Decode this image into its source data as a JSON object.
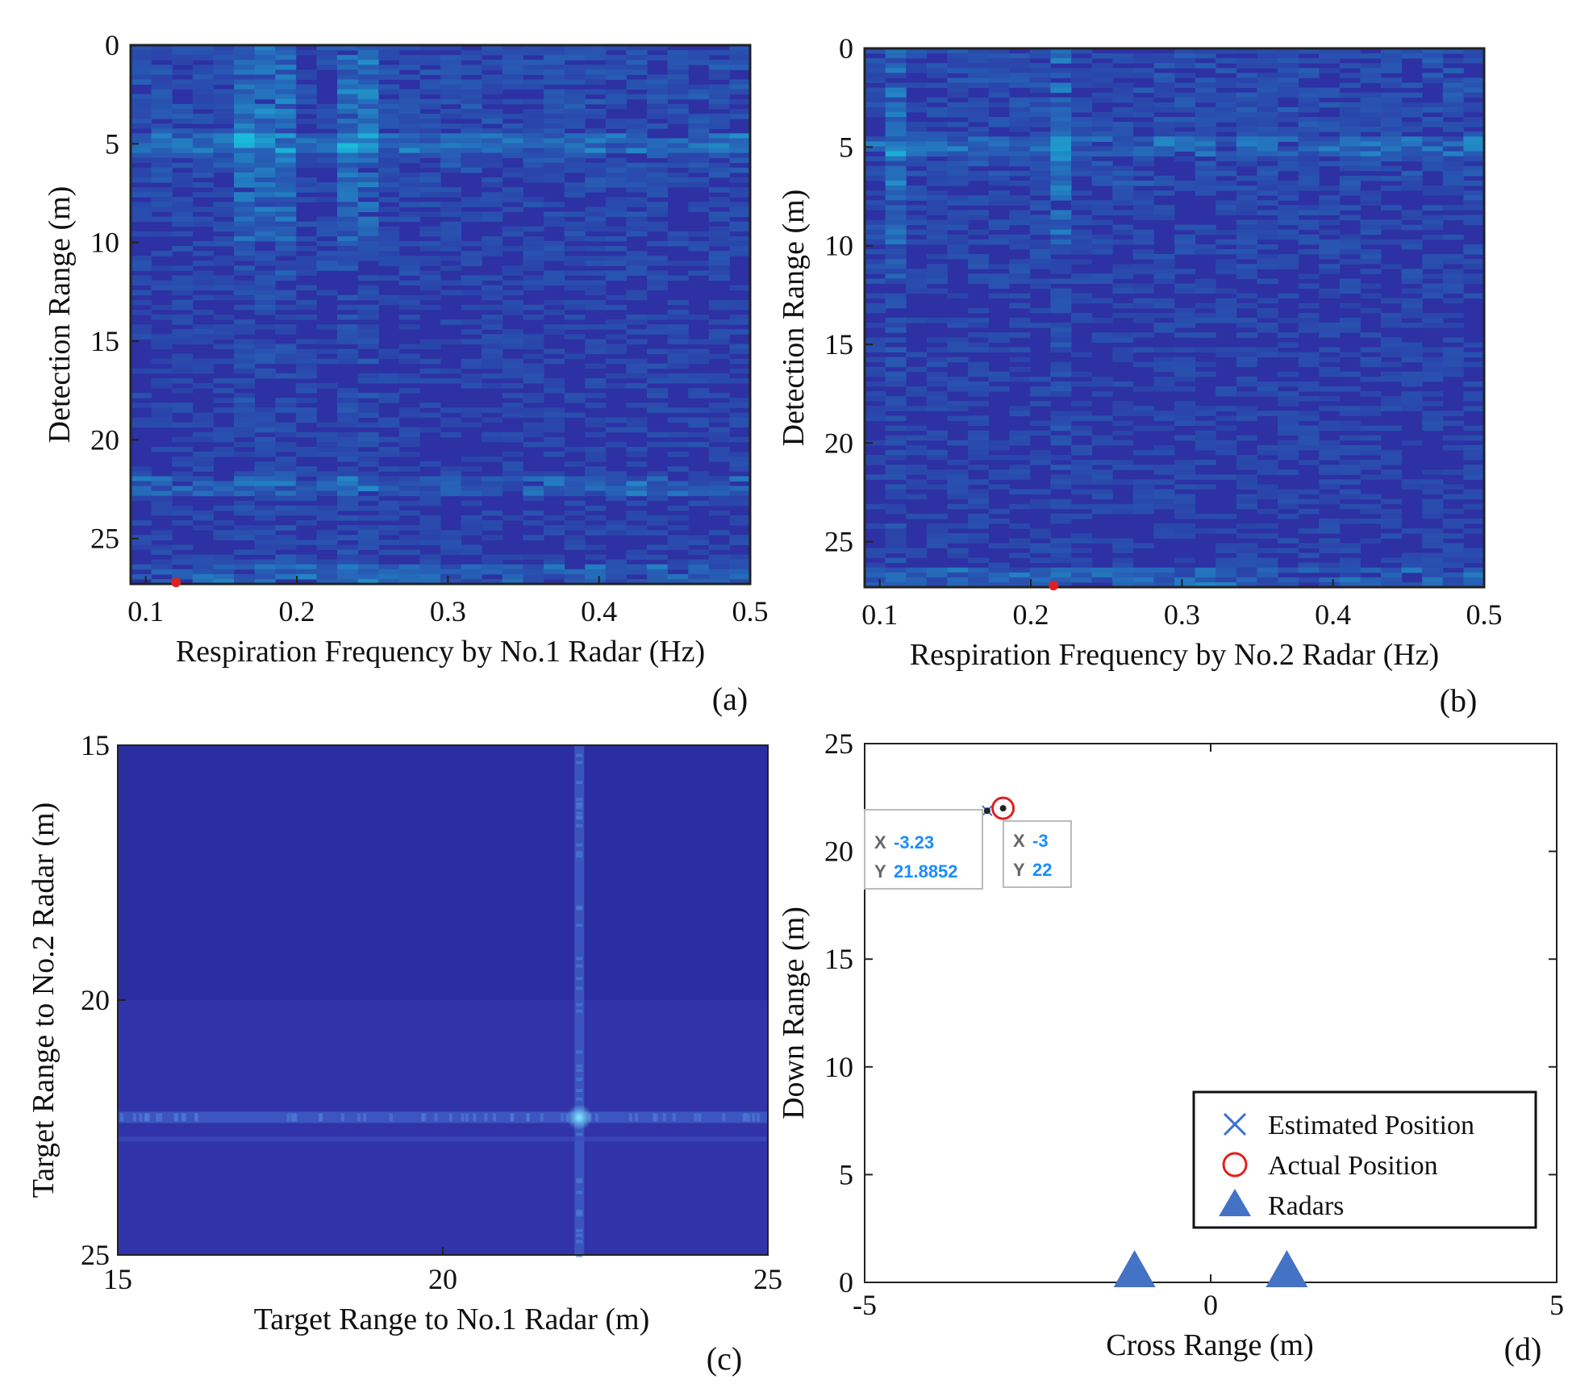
{
  "chart_data": [
    {
      "type": "heatmap",
      "panel": "(a)",
      "xlabel": "Respiration Frequency by No.1 Radar (Hz)",
      "ylabel": "Detection Range (m)",
      "xlim": [
        0.09,
        0.5
      ],
      "ylim": [
        0,
        27.3
      ],
      "xticks": [
        "0.1",
        "0.2",
        "0.3",
        "0.4",
        "0.5"
      ],
      "xtick_values": [
        0.1,
        0.2,
        0.3,
        0.4,
        0.5
      ],
      "yticks": [
        "0",
        "5",
        "10",
        "15",
        "20",
        "25"
      ],
      "ytick_values": [
        0,
        5,
        10,
        15,
        20,
        25
      ],
      "bright_columns_hz": [
        0.16,
        0.185,
        0.24
      ],
      "bright_rows_m": [
        5,
        22.3,
        26.8
      ],
      "marker": {
        "x": 0.12,
        "y": 27.3,
        "color": "#e02020"
      },
      "colors": {
        "base": "#2d31a3",
        "hot": "#22c8e0"
      }
    },
    {
      "type": "heatmap",
      "panel": "(b)",
      "xlabel": "Respiration Frequency by No.2 Radar (Hz)",
      "ylabel": "Detection Range (m)",
      "xlim": [
        0.09,
        0.5
      ],
      "ylim": [
        0,
        27.3
      ],
      "xticks": [
        "0.1",
        "0.2",
        "0.3",
        "0.4",
        "0.5"
      ],
      "xtick_values": [
        0.1,
        0.2,
        0.3,
        0.4,
        0.5
      ],
      "yticks": [
        "0",
        "5",
        "10",
        "15",
        "20",
        "25"
      ],
      "ytick_values": [
        0,
        5,
        10,
        15,
        20,
        25
      ],
      "bright_columns_hz": [
        0.105,
        0.225
      ],
      "bright_rows_m": [
        5,
        26.8
      ],
      "marker": {
        "x": 0.215,
        "y": 27.3,
        "color": "#e02020"
      },
      "colors": {
        "base": "#2d31a3",
        "hot": "#22c8e0"
      }
    },
    {
      "type": "heatmap",
      "panel": "(c)",
      "xlabel": "Target Range to No.1 Radar (m)",
      "ylabel": "Target Range to No.2 Radar (m)",
      "xlim": [
        15,
        25
      ],
      "ylim": [
        15,
        25
      ],
      "xticks": [
        "15",
        "20",
        "25"
      ],
      "xtick_values": [
        15,
        20,
        25
      ],
      "yticks": [
        "15",
        "20",
        "25"
      ],
      "ytick_values": [
        15,
        20,
        25
      ],
      "peak": {
        "x": 22.1,
        "y": 22.3
      },
      "colors": {
        "base_top": "#2b2ea0",
        "base_bottom": "#3034a8",
        "hot": "#4bb8e6"
      }
    },
    {
      "type": "scatter",
      "panel": "(d)",
      "xlabel": "Cross Range (m)",
      "ylabel": "Down Range (m)",
      "xlim": [
        -5,
        5
      ],
      "ylim": [
        0,
        25
      ],
      "xticks": [
        "-5",
        "0",
        "5"
      ],
      "xtick_values": [
        -5,
        0,
        5
      ],
      "yticks": [
        "0",
        "5",
        "10",
        "15",
        "20",
        "25"
      ],
      "ytick_values": [
        0,
        5,
        10,
        15,
        20,
        25
      ],
      "series": [
        {
          "name": "Estimated Position",
          "marker": "x",
          "color": "#3a6fd8",
          "points": [
            {
              "x": -3.23,
              "y": 21.8852
            }
          ]
        },
        {
          "name": "Actual Position",
          "marker": "o",
          "color": "#e02020",
          "points": [
            {
              "x": -3,
              "y": 22
            }
          ]
        },
        {
          "name": "Radars",
          "marker": "^",
          "color": "#4472c4",
          "points": [
            {
              "x": -1.1,
              "y": 0
            },
            {
              "x": 1.1,
              "y": 0
            }
          ]
        }
      ],
      "datatips": [
        {
          "x_key": "X",
          "x_val": "-3.23",
          "y_key": "Y",
          "y_val": "21.8852"
        },
        {
          "x_key": "X",
          "x_val": "-3",
          "y_key": "Y",
          "y_val": "22"
        }
      ],
      "legend": {
        "position": "bottom-right",
        "entries": [
          "Estimated Position",
          "Actual Position",
          "Radars"
        ]
      }
    }
  ]
}
